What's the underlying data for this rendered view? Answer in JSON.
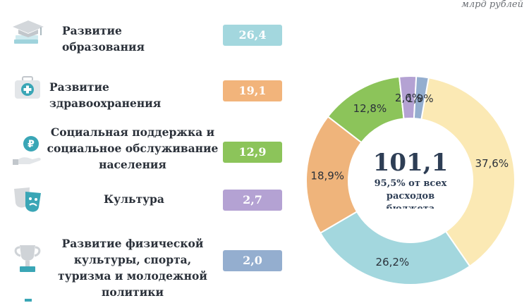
{
  "unit_label": "млрд рублей",
  "items": [
    {
      "label": "Развитие образования",
      "value": "26,4",
      "color": "#a3d7de",
      "icon": "education-cap-icon"
    },
    {
      "label": "Развитие здравоохранения",
      "value": "19,1",
      "color": "#f2b47b",
      "icon": "medical-kit-icon"
    },
    {
      "label": "Социальная поддержка и социальное обслуживание населения",
      "value": "12,9",
      "color": "#8cc45a",
      "icon": "ruble-hand-icon"
    },
    {
      "label": "Культура",
      "value": "2,7",
      "color": "#b4a2d3",
      "icon": "theater-masks-icon"
    },
    {
      "label": "Развитие физической культуры, спорта, туризма и молодежной политики",
      "value": "2,0",
      "color": "#94aecf",
      "icon": "trophy-icon"
    }
  ],
  "chart_data": {
    "type": "pie",
    "donut": true,
    "center_value": "101,1",
    "center_caption": "95,5% от всех расходов бюджета",
    "slices": [
      {
        "value": 37.6,
        "label": "37,6%",
        "color": "#fbe9b4"
      },
      {
        "value": 26.2,
        "label": "26,2%",
        "color": "#a3d7de"
      },
      {
        "value": 18.9,
        "label": "18,9%",
        "color": "#efb47b"
      },
      {
        "value": 12.8,
        "label": "12,8%",
        "color": "#8cc45a"
      },
      {
        "value": 2.6,
        "label": "2,6%",
        "color": "#b4a2d3"
      },
      {
        "value": 1.9,
        "label": "1,9%",
        "color": "#94aecf"
      }
    ]
  }
}
